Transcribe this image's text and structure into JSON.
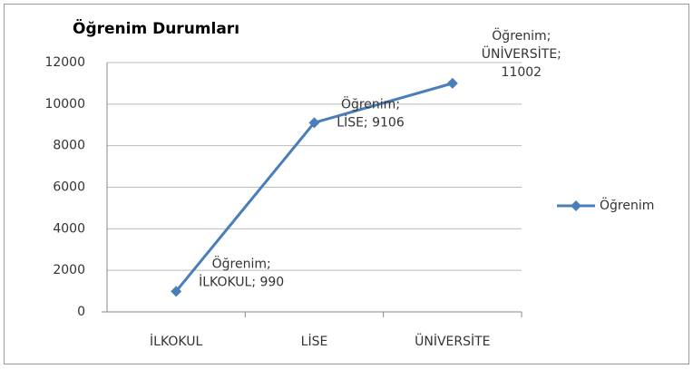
{
  "chart_data": {
    "type": "line",
    "title": "Öğrenim Durumları",
    "categories": [
      "İLKOKUL",
      "LİSE",
      "ÜNİVERSİTE"
    ],
    "series": [
      {
        "name": "Öğrenim",
        "color": "#4a7ebb",
        "values": [
          990,
          9106,
          11002
        ],
        "value_labels": [
          [
            "Öğrenim;",
            "İLKOKUL; 990"
          ],
          [
            "Öğrenim;",
            "LİSE; 9106"
          ],
          [
            "Öğrenim;",
            "ÜNİVERSİTE;",
            "11002"
          ]
        ]
      }
    ],
    "ylim": [
      0,
      12000
    ],
    "yticks": [
      0,
      2000,
      4000,
      6000,
      8000,
      10000,
      12000
    ],
    "grid": true,
    "legend": "right"
  }
}
